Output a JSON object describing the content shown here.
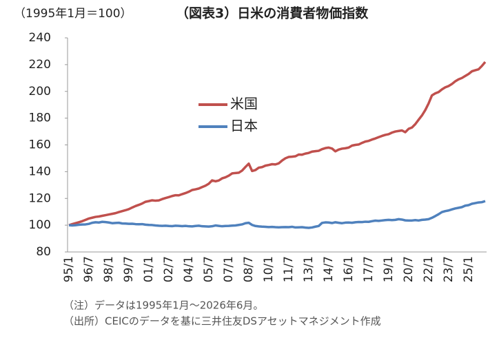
{
  "chart_data": {
    "type": "line",
    "subtitle": "（1995年1月＝100）",
    "title": "（図表3）日米の消費者物価指数",
    "notes": [
      "（注）データは1995年1月～2026年6月。",
      "（出所）CEICのデータを基に三井住友DSアセットマネジメント作成"
    ],
    "categories": [
      "95/1",
      null,
      null,
      null,
      null,
      null,
      "96/7",
      null,
      null,
      null,
      null,
      null,
      "98/1",
      null,
      null,
      null,
      null,
      null,
      "99/7",
      null,
      null,
      null,
      null,
      null,
      "01/1",
      null,
      null,
      null,
      null,
      null,
      "02/7",
      null,
      null,
      null,
      null,
      null,
      "04/1",
      null,
      null,
      null,
      null,
      null,
      "05/7",
      null,
      null,
      null,
      null,
      null,
      "07/1",
      null,
      null,
      null,
      null,
      null,
      "08/7",
      null,
      null,
      null,
      null,
      null,
      "10/1",
      null,
      null,
      null,
      null,
      null,
      "11/7",
      null,
      null,
      null,
      null,
      null,
      "13/1",
      null,
      null,
      null,
      null,
      null,
      "14/7",
      null,
      null,
      null,
      null,
      null,
      "16/1",
      null,
      null,
      null,
      null,
      null,
      "17/7",
      null,
      null,
      null,
      null,
      null,
      "19/1",
      null,
      null,
      null,
      null,
      null,
      "20/7",
      null,
      null,
      null,
      null,
      null,
      "22/1",
      null,
      null,
      null,
      null,
      null,
      "23/7",
      null,
      null,
      null,
      null,
      null,
      "25/1",
      null,
      null,
      null,
      null,
      null
    ],
    "series": [
      {
        "name": "米国",
        "color": "#c0504d",
        "values": [
          100,
          100.8,
          101.5,
          102.2,
          103,
          104,
          105,
          105.6,
          106.2,
          106.5,
          107,
          107.5,
          108,
          108.5,
          109,
          109.8,
          110.5,
          111.2,
          112,
          113.2,
          114.3,
          115.2,
          116.2,
          117.5,
          118,
          118.6,
          118.3,
          118.5,
          119.5,
          120.3,
          121,
          121.8,
          122.4,
          122.3,
          123.2,
          124,
          125,
          126.3,
          126.8,
          127.4,
          128.5,
          129.5,
          131,
          133.5,
          132.8,
          133.4,
          135,
          135.8,
          137,
          138.7,
          139,
          139.2,
          140.8,
          143.5,
          146,
          140.5,
          141.2,
          143,
          143.4,
          144.5,
          145,
          145.6,
          145.4,
          146.2,
          148.3,
          150,
          151,
          151.2,
          151.5,
          152.8,
          152.7,
          153.5,
          154,
          155,
          155.3,
          155.6,
          156.8,
          157.6,
          158,
          157.3,
          155.2,
          156.5,
          157.2,
          157.5,
          158,
          159.5,
          160,
          160.3,
          161.5,
          162.5,
          163,
          164,
          164.8,
          165.8,
          166.7,
          167.5,
          168,
          169.2,
          170,
          170.4,
          170.8,
          169.5,
          172,
          173,
          175.5,
          178.8,
          182,
          186,
          191,
          197,
          198.5,
          199.5,
          201.5,
          203,
          204,
          205.5,
          207.5,
          209,
          210,
          211.5,
          213,
          215,
          215.8,
          216.5,
          219,
          222
        ]
      },
      {
        "name": "日本",
        "color": "#4f81bd",
        "values": [
          100,
          99.8,
          100,
          100.3,
          100.5,
          100.6,
          101,
          101.8,
          102.2,
          102,
          102.5,
          102.3,
          102,
          101.5,
          101.7,
          101.8,
          101.3,
          101.2,
          101,
          101.1,
          100.8,
          100.7,
          100.8,
          100.4,
          100.2,
          100.1,
          99.8,
          99.6,
          99.5,
          99.6,
          99.4,
          99.3,
          99.6,
          99.5,
          99.3,
          99.5,
          99.2,
          99.1,
          99.4,
          99.6,
          99.2,
          99.1,
          99.0,
          99.2,
          99.8,
          99.5,
          99.2,
          99.4,
          99.5,
          99.7,
          99.8,
          100.2,
          100.6,
          101.5,
          101.8,
          100.2,
          99.4,
          99.1,
          98.9,
          98.8,
          98.6,
          98.7,
          98.5,
          98.4,
          98.5,
          98.6,
          98.5,
          98.8,
          98.3,
          98.4,
          98.5,
          98.2,
          98.0,
          98.3,
          98.9,
          99.4,
          101.7,
          102.1,
          102,
          101.6,
          102.2,
          101.8,
          101.5,
          101.9,
          102,
          101.8,
          102.2,
          102.4,
          102.3,
          102.6,
          102.5,
          103,
          103.4,
          103.2,
          103.5,
          103.8,
          104,
          103.8,
          104,
          104.5,
          104.2,
          103.6,
          103.5,
          103.5,
          103.8,
          103.5,
          104,
          104.2,
          104.5,
          105.5,
          106.8,
          108.2,
          109.8,
          110.5,
          111,
          111.8,
          112.5,
          113,
          113.5,
          114.6,
          115,
          116,
          116.5,
          117,
          117.2,
          118
        ]
      }
    ],
    "ylim": [
      80,
      240
    ],
    "yticks": [
      80,
      100,
      120,
      140,
      160,
      180,
      200,
      220,
      240
    ],
    "grid": false,
    "legend": "inside"
  }
}
